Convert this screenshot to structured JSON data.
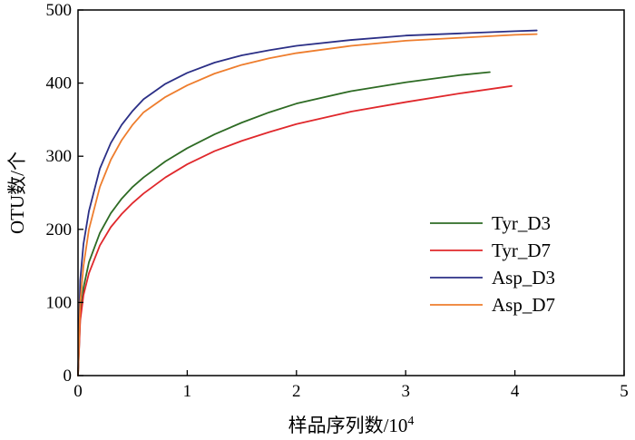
{
  "chart_data": {
    "type": "line",
    "title": "",
    "xlabel": "样品序列数/10",
    "xlabel_superscript": "4",
    "ylabel": "OTU数/个",
    "xlim": [
      0,
      5
    ],
    "ylim": [
      0,
      500
    ],
    "xticks": [
      0,
      1,
      2,
      3,
      4,
      5
    ],
    "yticks": [
      0,
      100,
      200,
      300,
      400,
      500
    ],
    "grid": false,
    "legend_position": "right-center",
    "series": [
      {
        "name": "Tyr_D3",
        "color": "#2e6b24",
        "x": [
          0,
          0.02,
          0.05,
          0.1,
          0.2,
          0.3,
          0.4,
          0.5,
          0.6,
          0.8,
          1.0,
          1.25,
          1.5,
          1.75,
          2.0,
          2.5,
          3.0,
          3.5,
          3.77
        ],
        "y": [
          0,
          80,
          120,
          155,
          195,
          222,
          242,
          258,
          271,
          293,
          311,
          330,
          346,
          360,
          372,
          389,
          401,
          411,
          415
        ]
      },
      {
        "name": "Tyr_D7",
        "color": "#e0282c",
        "x": [
          0,
          0.02,
          0.05,
          0.1,
          0.2,
          0.3,
          0.4,
          0.5,
          0.6,
          0.8,
          1.0,
          1.25,
          1.5,
          1.75,
          2.0,
          2.5,
          3.0,
          3.5,
          3.97
        ],
        "y": [
          0,
          75,
          110,
          140,
          178,
          203,
          221,
          236,
          249,
          271,
          289,
          307,
          321,
          333,
          344,
          361,
          374,
          386,
          396
        ]
      },
      {
        "name": "Asp_D3",
        "color": "#2b2f86",
        "x": [
          0,
          0.02,
          0.05,
          0.1,
          0.2,
          0.3,
          0.4,
          0.5,
          0.6,
          0.8,
          1.0,
          1.25,
          1.5,
          1.75,
          2.0,
          2.5,
          3.0,
          3.5,
          4.0,
          4.2
        ],
        "y": [
          0,
          130,
          180,
          225,
          283,
          318,
          343,
          362,
          378,
          399,
          414,
          428,
          438,
          445,
          451,
          459,
          465,
          468,
          471,
          472
        ]
      },
      {
        "name": "Asp_D7",
        "color": "#ee7d2d",
        "x": [
          0,
          0.02,
          0.05,
          0.1,
          0.2,
          0.3,
          0.4,
          0.5,
          0.6,
          0.8,
          1.0,
          1.25,
          1.5,
          1.75,
          2.0,
          2.5,
          3.0,
          3.5,
          4.0,
          4.2
        ],
        "y": [
          0,
          100,
          150,
          200,
          258,
          295,
          322,
          343,
          360,
          381,
          397,
          413,
          425,
          434,
          441,
          451,
          458,
          462,
          466,
          467
        ]
      }
    ]
  }
}
